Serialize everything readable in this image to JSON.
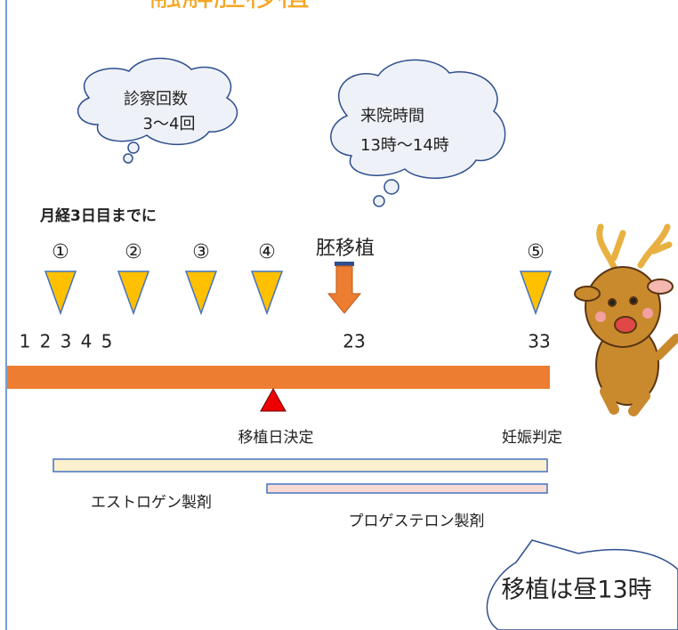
{
  "title": "融解胚移植",
  "clouds": [
    {
      "lines": [
        "診察回数",
        "3〜4回"
      ]
    },
    {
      "lines": [
        "来院時間",
        "13時〜14時"
      ]
    }
  ],
  "note": "月経3日目までに",
  "visits": [
    "①",
    "②",
    "③",
    "④",
    "⑤"
  ],
  "transfer": "胚移植",
  "days": [
    "1",
    "2",
    "3",
    "4",
    "5",
    "23",
    "33"
  ],
  "events": [
    "移植日決定",
    "妊娠判定"
  ],
  "medications": [
    "エストロゲン製剤",
    "プロゲステロン製剤"
  ],
  "speech": "移植は昼13時"
}
